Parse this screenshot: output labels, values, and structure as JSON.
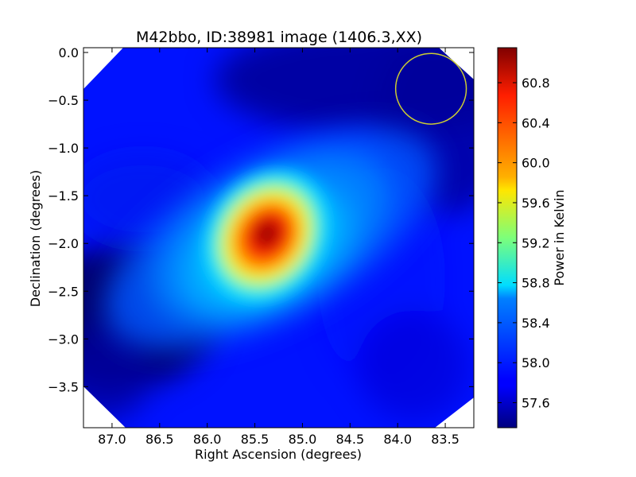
{
  "chart_data": {
    "type": "heatmap",
    "title": "M42bbo, ID:38981 image (1406.3,XX)",
    "xlabel": "Right Ascension (degrees)",
    "ylabel": "Declination (degrees)",
    "xlim": [
      87.3,
      83.2
    ],
    "ylim": [
      -3.93,
      0.05
    ],
    "x_ticks": [
      87.0,
      86.5,
      86.0,
      85.5,
      85.0,
      84.5,
      84.0,
      83.5
    ],
    "x_tick_labels": [
      "87.0",
      "86.5",
      "86.0",
      "85.5",
      "85.0",
      "84.5",
      "84.0",
      "83.5"
    ],
    "y_ticks": [
      0.0,
      -0.5,
      -1.0,
      -1.5,
      -2.0,
      -2.5,
      -3.0,
      -3.5
    ],
    "y_tick_labels": [
      "0.0",
      "−0.5",
      "−1.0",
      "−1.5",
      "−2.0",
      "−2.5",
      "−3.0",
      "−3.5"
    ],
    "colorbar": {
      "label": "Power in Kelvin",
      "range": [
        57.35,
        61.15
      ],
      "ticks": [
        57.6,
        58.0,
        58.4,
        58.8,
        59.2,
        59.6,
        60.0,
        60.4,
        60.8
      ],
      "tick_labels": [
        "57.6",
        "58.0",
        "58.4",
        "58.8",
        "59.2",
        "59.6",
        "60.0",
        "60.4",
        "60.8"
      ],
      "colormap": "jet"
    },
    "peak": {
      "ra": 85.35,
      "dec": -1.95,
      "value": 61.1
    },
    "background_level": 57.9,
    "beam_circle": {
      "ra": 83.65,
      "dec": -0.38,
      "radius_deg": 0.37,
      "color": "#cccc33"
    }
  }
}
